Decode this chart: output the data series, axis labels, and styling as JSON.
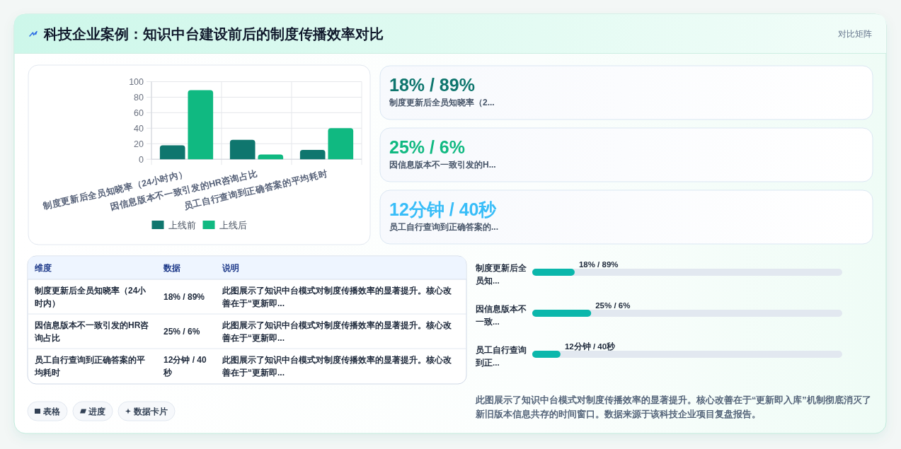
{
  "chart_data": [
    {
      "type": "bar",
      "title": "科技企业案例：知识中台建设前后的制度传播效率对比",
      "categories": [
        "制度更新后全员知晓率（24小时内）",
        "因信息版本不一致引发的HR咨询占比",
        "员工自行查询到正确答案的平均耗时"
      ],
      "series": [
        {
          "name": "上线前",
          "color": "#0f766e",
          "values": [
            18,
            25,
            12
          ]
        },
        {
          "name": "上线后",
          "color": "#10b981",
          "values": [
            89,
            6,
            40
          ]
        }
      ],
      "ylim": [
        0,
        100
      ],
      "yticks": [
        0,
        20,
        40,
        60,
        80,
        100
      ],
      "grid": true,
      "legend": "bottom"
    },
    {
      "type": "other",
      "categories": [
        "制度更新后全员知晓率（2...",
        "因信息版本不一致引发的H...",
        "员工自行查询到正确答案的..."
      ],
      "value_labels": [
        "18% / 89%",
        "25% / 6%",
        "12分钟 / 40秒"
      ],
      "annotations": [
        "对比矩阵"
      ]
    },
    {
      "type": "other",
      "categories": [
        "维度",
        "数据",
        "说明"
      ],
      "cell_labels": [
        [
          "制度更新后全员知晓率（24小时内）",
          "18% / 89%",
          "此图展示了知识中台模式对制度传播效率的显著提升。核心改善在于“更新即..."
        ],
        [
          "因信息版本不一致引发的HR咨询占比",
          "25% / 6%",
          "此图展示了知识中台模式对制度传播效率的显著提升。核心改善在于“更新即..."
        ],
        [
          "员工自行查询到正确答案的平均耗时",
          "12分钟 / 40秒",
          "此图展示了知识中台模式对制度传播效率的显著提升。核心改善在于“更新即..."
        ]
      ],
      "annotations": [
        "表格",
        "进度",
        "数据卡片"
      ]
    },
    {
      "type": "bar",
      "orientation": "horizontal",
      "categories": [
        "制度更新后全员知...",
        "因信息版本不一致...",
        "员工自行查询到正..."
      ],
      "values": [
        18,
        25,
        12
      ],
      "value_labels": [
        "18% / 89%",
        "25% / 6%",
        "12分钟 / 40秒"
      ],
      "color": "#0bb7ab",
      "annotations": [
        "此图展示了知识中台模式对制度传播效率的显著提升。核心改善在于“更新即入库”机制彻底消灭了新旧版本信息共存的时间窗口。数据来源于该科技企业项目复盘报告。"
      ]
    }
  ]
}
